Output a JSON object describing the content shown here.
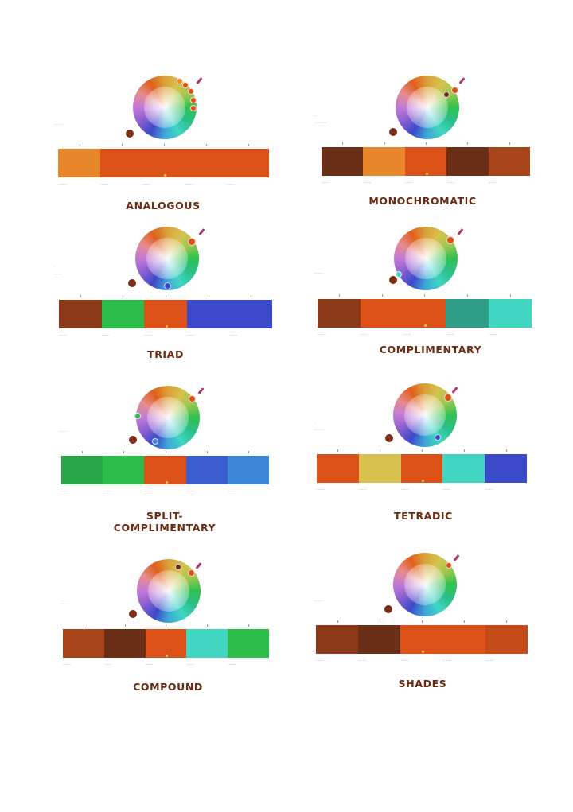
{
  "colors": {
    "title": "#6b2a12",
    "label": "#a048a6",
    "brown": "#6b2e16",
    "orange": "#dc5118",
    "light_orange": "#e8862c",
    "rust": "#a8451b",
    "green": "#2dbd4b",
    "dark_green": "#27a745",
    "teal": "#40d6c1",
    "teal_dark": "#2e9f86",
    "blue": "#3b49cb",
    "blue_mid": "#3a5ed0",
    "blue_light": "#3b86d6",
    "yellow": "#d7c04e"
  },
  "schemes": [
    {
      "name": "ANALOGOUS",
      "side_label_top": "",
      "side_label": "........",
      "swatches": [
        "#e8862c",
        "#dc5118",
        "#dc5118",
        "#dc5118",
        "#dc5118"
      ],
      "codes": [
        ".......",
        ".......",
        ".......",
        ".......",
        "......."
      ]
    },
    {
      "name": "MONOCHROMATIC",
      "side_label_top": "..",
      "side_label": "..........",
      "swatches": [
        "#6b2e16",
        "#e8862c",
        "#dc5118",
        "#6b2e16",
        "#a8451b"
      ],
      "codes": [
        ".......",
        ".......",
        ".......",
        ".......",
        "......."
      ]
    },
    {
      "name": "TRIAD",
      "side_label_top": ".",
      "side_label": "......",
      "swatches": [
        "#8a3a18",
        "#2dbd4b",
        "#dc5118",
        "#3b49cb",
        "#3b49cb"
      ],
      "codes": [
        ".......",
        ".......",
        ".......",
        ".......",
        "......."
      ]
    },
    {
      "name": "COMPLIMENTARY",
      "side_label_top": "",
      "side_label": ".......",
      "swatches": [
        "#8a3a18",
        "#dc5118",
        "#dc5118",
        "#2e9f86",
        "#40d6c1"
      ],
      "codes": [
        ".......",
        ".......",
        ".......",
        ".......",
        "......."
      ]
    },
    {
      "name": "SPLIT-COMPLIMENTARY",
      "side_label_top": "",
      "side_label": "......",
      "swatches": [
        "#27a745",
        "#2dbd4b",
        "#dc5118",
        "#3a5ed0",
        "#3b86d6"
      ],
      "codes": [
        ".......",
        ".......",
        ".......",
        ".......",
        "......."
      ]
    },
    {
      "name": "TETRADIC",
      "side_label_top": ".",
      "side_label": "........",
      "swatches": [
        "#dc5118",
        "#d7c04e",
        "#dc5118",
        "#40d6c1",
        "#3b49cb"
      ],
      "codes": [
        ".......",
        ".......",
        ".......",
        ".......",
        "......."
      ]
    },
    {
      "name": "COMPOUND",
      "side_label_top": "",
      "side_label": "........",
      "swatches": [
        "#a8451b",
        "#6b2e16",
        "#dc5118",
        "#40d6c1",
        "#2dbd4b"
      ],
      "codes": [
        ".......",
        ".......",
        ".......",
        ".......",
        "......."
      ]
    },
    {
      "name": "SHADES",
      "side_label_top": "",
      "side_label": ".......",
      "swatches": [
        "#8a3a18",
        "#6b2e16",
        "#dc5118",
        "#dc5118",
        "#c44a18"
      ],
      "codes": [
        ".......",
        ".......",
        ".......",
        ".......",
        "......."
      ]
    }
  ]
}
